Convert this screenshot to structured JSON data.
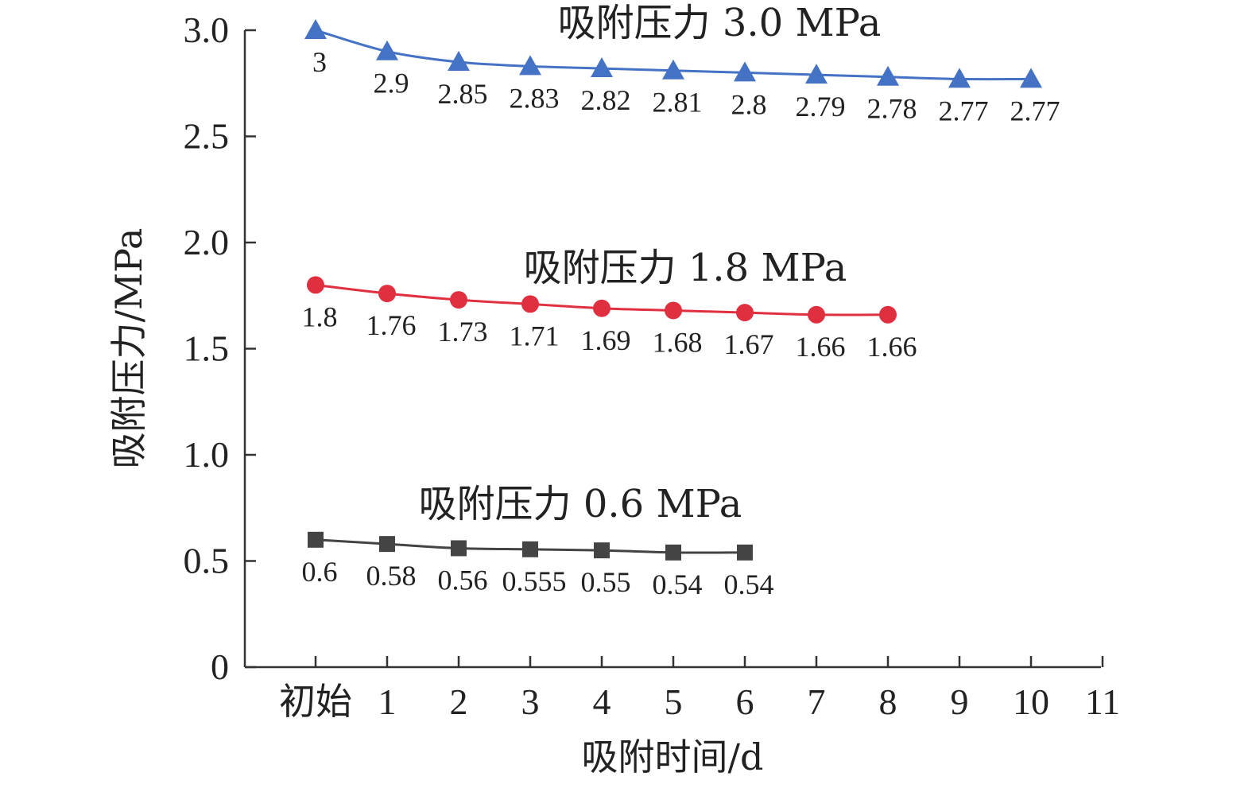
{
  "chart_data": {
    "type": "line",
    "xlabel": "吸附时间/d",
    "ylabel": "吸附压力/MPa",
    "x_categories": [
      "初始",
      "1",
      "2",
      "3",
      "4",
      "5",
      "6",
      "7",
      "8",
      "9",
      "10",
      "11"
    ],
    "y_ticks": [
      "0",
      "0.5",
      "1.0",
      "1.5",
      "2.0",
      "2.5",
      "3.0"
    ],
    "ylim": [
      0,
      3.0
    ],
    "grid": false,
    "legend": "none",
    "series": [
      {
        "name": "吸附压力 3.0 MPa",
        "marker": "triangle",
        "color": "#4472c4",
        "values": [
          3,
          2.9,
          2.85,
          2.83,
          2.82,
          2.81,
          2.8,
          2.79,
          2.78,
          2.77,
          2.77
        ],
        "labels": [
          "3",
          "2.9",
          "2.85",
          "2.83",
          "2.82",
          "2.81",
          "2.8",
          "2.79",
          "2.78",
          "2.77",
          "2.77"
        ]
      },
      {
        "name": "吸附压力 1.8 MPa",
        "marker": "circle",
        "color": "#e03040",
        "values": [
          1.8,
          1.76,
          1.73,
          1.71,
          1.69,
          1.68,
          1.67,
          1.66,
          1.66
        ],
        "labels": [
          "1.8",
          "1.76",
          "1.73",
          "1.71",
          "1.69",
          "1.68",
          "1.67",
          "1.66",
          "1.66"
        ]
      },
      {
        "name": "吸附压力 0.6 MPa",
        "marker": "square",
        "color": "#444444",
        "values": [
          0.6,
          0.58,
          0.56,
          0.555,
          0.55,
          0.54,
          0.54
        ],
        "labels": [
          "0.6",
          "0.58",
          "0.56",
          "0.555",
          "0.55",
          "0.54",
          "0.54"
        ]
      }
    ]
  }
}
